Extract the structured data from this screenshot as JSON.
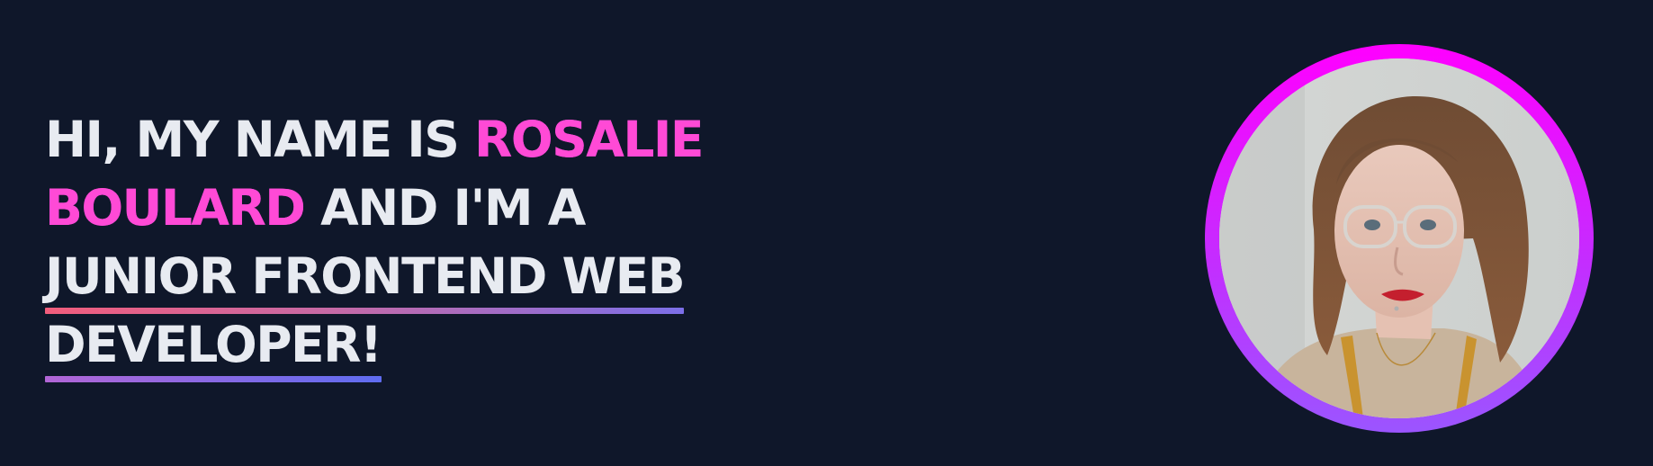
{
  "hero": {
    "intro": "HI, MY NAME IS",
    "first_name": "ROSALIE",
    "last_name": "BOULARD",
    "after_name": "AND I'M A",
    "role_line": "JUNIOR FRONTEND WEB",
    "role_end": "DEVELOPER!"
  },
  "portrait": {
    "icon": "portrait-photo"
  },
  "colors": {
    "background": "#0f172a",
    "text": "#e8ebf1",
    "accent": "#ff4ad6",
    "ring_top": "#ff00ff",
    "ring_bottom": "#9b55ff",
    "underline_start": "#f25d7c",
    "underline_end": "#5f6cf0"
  }
}
